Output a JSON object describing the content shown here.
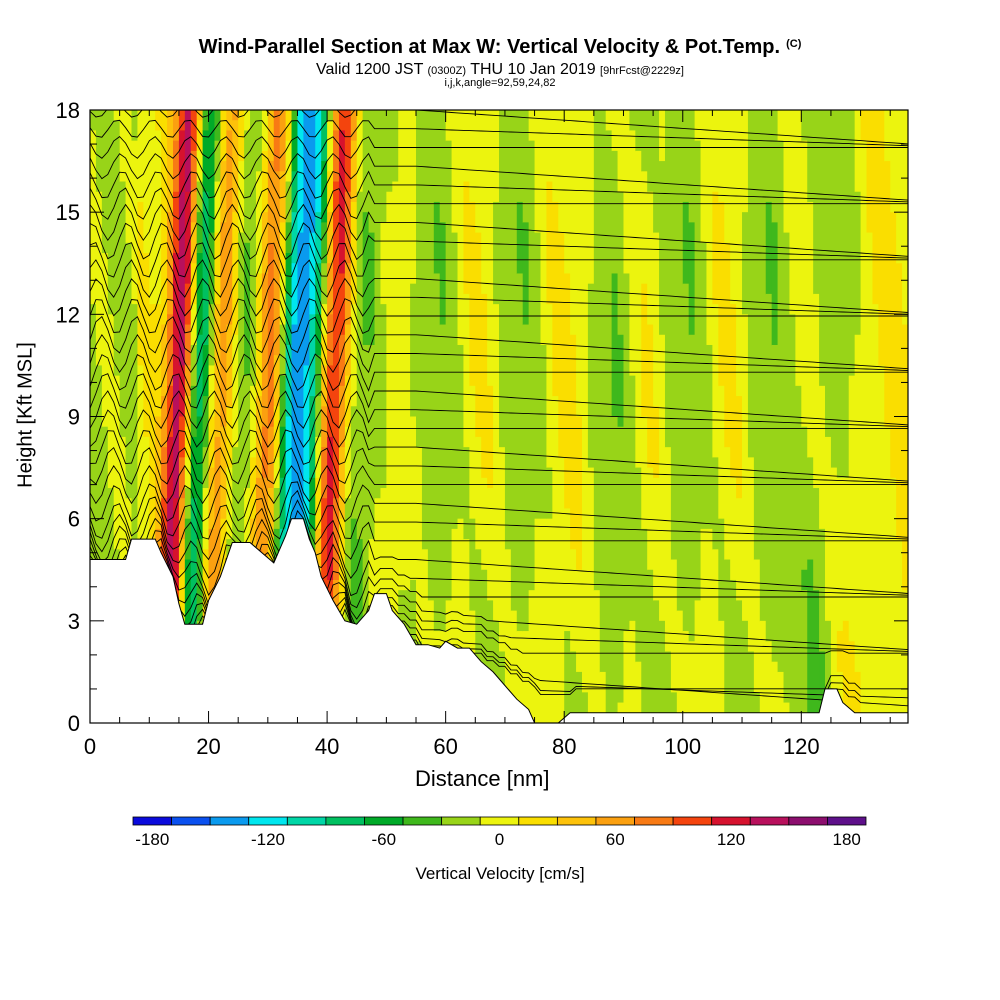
{
  "header": {
    "title": "Wind-Parallel Section at Max W: Vertical Velocity & Pot.Temp.",
    "copyright": "(C)",
    "valid_prefix": "Valid 1200 JST",
    "valid_utc": "(0300Z)",
    "valid_date": "THU 10 Jan 2019",
    "forecast": "[9hrFcst@2229z]",
    "params": "i,j,k,angle=92,59,24,82"
  },
  "chart_data": {
    "type": "heatmap",
    "title": "Wind-Parallel Section at Max W: Vertical Velocity & Pot.Temp.",
    "xlabel": "Distance [nm]",
    "ylabel": "Height [Kft MSL]",
    "xlim": [
      0,
      138
    ],
    "ylim": [
      0,
      18
    ],
    "x_ticks": [
      0,
      20,
      40,
      60,
      80,
      100,
      120
    ],
    "y_ticks": [
      0,
      3,
      6,
      9,
      12,
      15,
      18
    ],
    "grid": false,
    "colorbar": {
      "label": "Vertical Velocity [cm/s]",
      "orientation": "horizontal",
      "placement": "bottom",
      "ticks": [
        -180,
        -120,
        -60,
        0,
        60,
        120,
        180
      ],
      "levels": [
        -190,
        -170,
        -150,
        -130,
        -110,
        -90,
        -70,
        -50,
        -30,
        -10,
        10,
        30,
        50,
        70,
        90,
        110,
        130,
        150,
        170,
        190
      ],
      "colors": [
        "#0a0adc",
        "#0a50ef",
        "#0a9aee",
        "#00e6ee",
        "#00d6a6",
        "#00c060",
        "#00aa28",
        "#3fb81c",
        "#98d418",
        "#ecf40e",
        "#fade00",
        "#fdc20a",
        "#fba010",
        "#f87a14",
        "#f4440e",
        "#d6122e",
        "#b8105c",
        "#8c0e6e",
        "#5e108a"
      ]
    },
    "terrain_ft": [
      [
        0,
        4800
      ],
      [
        6,
        4800
      ],
      [
        7,
        5400
      ],
      [
        11,
        5400
      ],
      [
        12,
        5000
      ],
      [
        14,
        4300
      ],
      [
        15,
        3500
      ],
      [
        16,
        2900
      ],
      [
        19,
        2900
      ],
      [
        20,
        3600
      ],
      [
        22,
        4300
      ],
      [
        24,
        5300
      ],
      [
        27,
        5300
      ],
      [
        29,
        5000
      ],
      [
        31,
        4700
      ],
      [
        33,
        5500
      ],
      [
        34,
        6000
      ],
      [
        36,
        6000
      ],
      [
        37,
        5400
      ],
      [
        38,
        5000
      ],
      [
        39,
        4300
      ],
      [
        41,
        3600
      ],
      [
        43,
        3000
      ],
      [
        45,
        2900
      ],
      [
        47,
        3300
      ],
      [
        48,
        3800
      ],
      [
        50,
        3800
      ],
      [
        51,
        3300
      ],
      [
        53,
        2900
      ],
      [
        55,
        2300
      ],
      [
        57,
        2300
      ],
      [
        59,
        2200
      ],
      [
        60,
        2400
      ],
      [
        62,
        2200
      ],
      [
        64,
        2200
      ],
      [
        66,
        1800
      ],
      [
        68,
        1500
      ],
      [
        70,
        1100
      ],
      [
        72,
        700
      ],
      [
        74,
        400
      ],
      [
        75,
        0
      ],
      [
        79,
        0
      ],
      [
        81,
        300
      ],
      [
        86,
        300
      ],
      [
        89,
        300
      ],
      [
        92,
        300
      ],
      [
        123,
        300
      ],
      [
        124,
        1000
      ],
      [
        126,
        1000
      ],
      [
        127,
        600
      ],
      [
        129,
        300
      ],
      [
        138,
        300
      ]
    ],
    "w_features": [
      {
        "x": 15,
        "w_cms": 150
      },
      {
        "x": 18,
        "w_cms": -110
      },
      {
        "x": 22,
        "w_cms": 90
      },
      {
        "x": 25,
        "w_cms": -50
      },
      {
        "x": 30,
        "w_cms": 90
      },
      {
        "x": 34,
        "w_cms": -120
      },
      {
        "x": 37,
        "w_cms": -100
      },
      {
        "x": 41,
        "w_cms": 130
      },
      {
        "x": 45,
        "w_cms": -40
      },
      {
        "x": 58,
        "w_cms": -30
      },
      {
        "x": 72,
        "w_cms": -30
      },
      {
        "x": 88,
        "w_cms": -30
      },
      {
        "x": 100,
        "w_cms": -30
      },
      {
        "x": 114,
        "w_cms": -30
      },
      {
        "x": 124,
        "w_cms": -30
      }
    ]
  }
}
